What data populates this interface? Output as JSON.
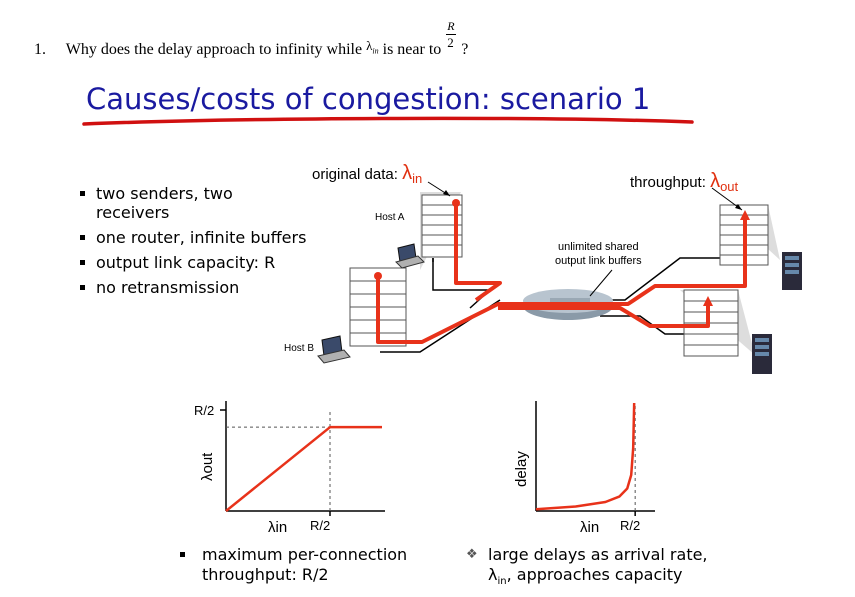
{
  "question": {
    "number": "1.",
    "text_before": "Why does the delay approach to infinity while",
    "lambda": "λ",
    "lambda_sub": "in",
    "text_mid": "is near to",
    "frac_num": "R",
    "frac_den": "2",
    "text_end": "?"
  },
  "slide": {
    "title": "Causes/costs of congestion: scenario 1",
    "bullets": [
      "two senders, two",
      "receivers",
      "one router, infinite buffers",
      "output link capacity: R",
      "no retransmission"
    ],
    "labels": {
      "original_data": "original data:",
      "lambda_in": "λ",
      "in_sub": "in",
      "throughput": "throughput:",
      "lambda_out": "λ",
      "out_sub": "out",
      "host_a": "Host A",
      "host_b": "Host B",
      "buffers_line1": "unlimited shared",
      "buffers_line2": "output link buffers"
    },
    "bottom_left": {
      "line1": "maximum per-connection",
      "line2": "throughput: R/2"
    },
    "bottom_right": {
      "line1": "large delays as arrival rate,",
      "line2_lambda": "λ",
      "line2_sub": "in",
      "line2_rest": ", approaches capacity"
    },
    "colors": {
      "title": "#1a1aa0",
      "accent": "#e03010",
      "underline": "#d01010"
    }
  },
  "chart_data": [
    {
      "type": "line",
      "title": "",
      "xlabel": "λin",
      "ylabel": "λout",
      "x_ticks": [
        "R/2"
      ],
      "y_ticks": [
        "R/2"
      ],
      "series": [
        {
          "x": [
            0,
            0.5,
            0.75
          ],
          "y": [
            0,
            0.5,
            0.5
          ]
        }
      ],
      "xlim": [
        0,
        0.75
      ],
      "ylim": [
        0,
        0.6
      ],
      "grid": false,
      "reference_lines": [
        "x = R/2",
        "y = R/2"
      ]
    },
    {
      "type": "line",
      "title": "",
      "xlabel": "λin",
      "ylabel": "delay",
      "x_ticks": [
        "R/2"
      ],
      "y_ticks": [],
      "series": [
        {
          "x": [
            0,
            0.2,
            0.35,
            0.42,
            0.46,
            0.48,
            0.49,
            0.495
          ],
          "y": [
            0.02,
            0.05,
            0.1,
            0.16,
            0.25,
            0.4,
            0.7,
            1.2
          ]
        }
      ],
      "xlim": [
        0,
        0.6
      ],
      "ylim": [
        0,
        1.2
      ],
      "grid": false,
      "asymptote": "x = R/2"
    }
  ]
}
